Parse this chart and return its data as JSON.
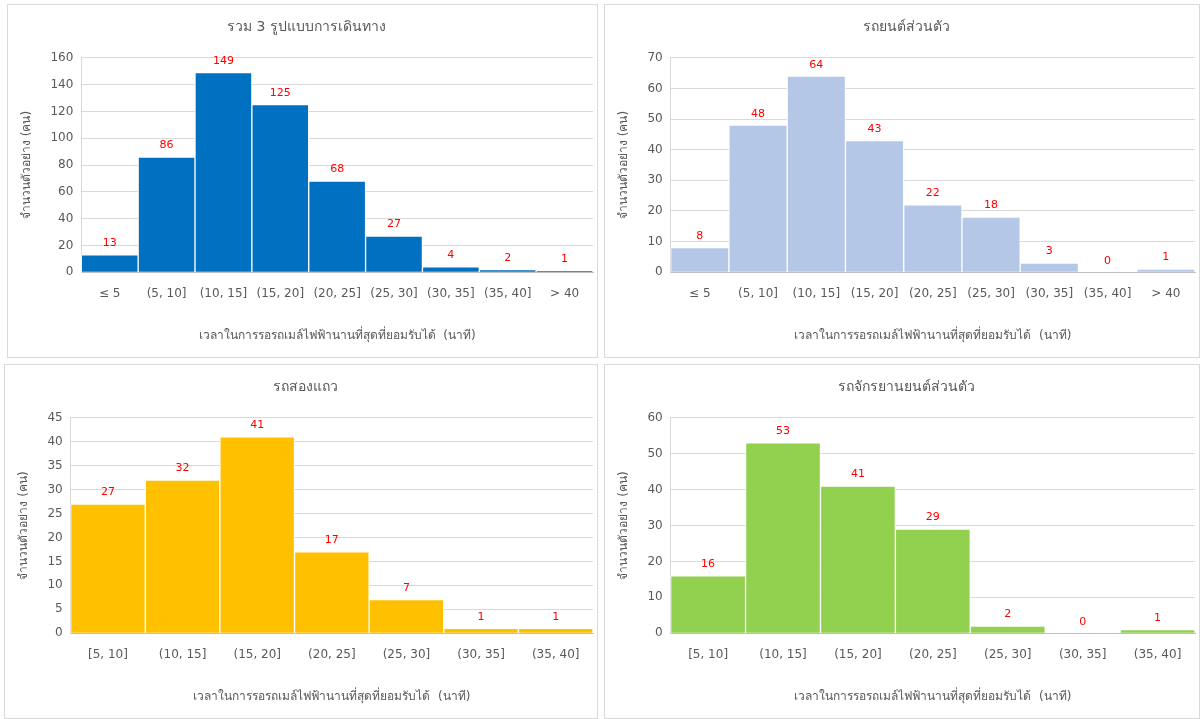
{
  "chart_data": [
    {
      "type": "bar",
      "title": "รวม 3 รูปแบบการเดินทาง",
      "xlabel": "เวลาในการรอรถเมล์ไฟฟ้านานที่สุดที่ยอมรับได้  (นาที)",
      "ylabel": "จำนวนตัวอย่าง (คน)",
      "categories": [
        "≤ 5",
        "(5, 10]",
        "(10, 15]",
        "(15, 20]",
        "(20, 25]",
        "(25, 30]",
        "(30, 35]",
        "(35, 40]",
        "> 40"
      ],
      "values": [
        13,
        86,
        149,
        125,
        68,
        27,
        4,
        2,
        1
      ],
      "color": "#0070c0",
      "ylim": [
        0,
        160
      ],
      "yticks": [
        0,
        20,
        40,
        60,
        80,
        100,
        120,
        140,
        160
      ],
      "grid": "y",
      "data_labels": true
    },
    {
      "type": "bar",
      "title": "รถยนต์ส่วนตัว",
      "xlabel": "เวลาในการรอรถเมล์ไฟฟ้านานที่สุดที่ยอมรับได้  (นาที)",
      "ylabel": "จำนวนตัวอย่าง (คน)",
      "categories": [
        "≤ 5",
        "(5, 10]",
        "(10, 15]",
        "(15, 20]",
        "(20, 25]",
        "(25, 30]",
        "(30, 35]",
        "(35, 40]",
        "> 40"
      ],
      "values": [
        8,
        48,
        64,
        43,
        22,
        18,
        3,
        0,
        1
      ],
      "color": "#b4c7e7",
      "ylim": [
        0,
        70
      ],
      "yticks": [
        0,
        10,
        20,
        30,
        40,
        50,
        60,
        70
      ],
      "grid": "y",
      "data_labels": true
    },
    {
      "type": "bar",
      "title": "รถสองแถว",
      "xlabel": "เวลาในการรอรถเมล์ไฟฟ้านานที่สุดที่ยอมรับได้  (นาที)",
      "ylabel": "จำนวนตัวอย่าง (คน)",
      "categories": [
        "[5, 10]",
        "(10, 15]",
        "(15, 20]",
        "(20, 25]",
        "(25, 30]",
        "(30, 35]",
        "(35, 40]"
      ],
      "values": [
        27,
        32,
        41,
        17,
        7,
        1,
        1
      ],
      "color": "#ffc000",
      "ylim": [
        0,
        45
      ],
      "yticks": [
        0,
        5,
        10,
        15,
        20,
        25,
        30,
        35,
        40,
        45
      ],
      "grid": "y",
      "data_labels": true
    },
    {
      "type": "bar",
      "title": "รถจักรยานยนต์ส่วนตัว",
      "xlabel": "เวลาในการรอรถเมล์ไฟฟ้านานที่สุดที่ยอมรับได้  (นาที)",
      "ylabel": "จำนวนตัวอย่าง (คน)",
      "categories": [
        "[5, 10]",
        "(10, 15]",
        "(15, 20]",
        "(20, 25]",
        "(25, 30]",
        "(30, 35]",
        "(35, 40]"
      ],
      "values": [
        16,
        53,
        41,
        29,
        2,
        0,
        1
      ],
      "color": "#92d050",
      "ylim": [
        0,
        60
      ],
      "yticks": [
        0,
        10,
        20,
        30,
        40,
        50,
        60
      ],
      "grid": "y",
      "data_labels": true
    }
  ]
}
